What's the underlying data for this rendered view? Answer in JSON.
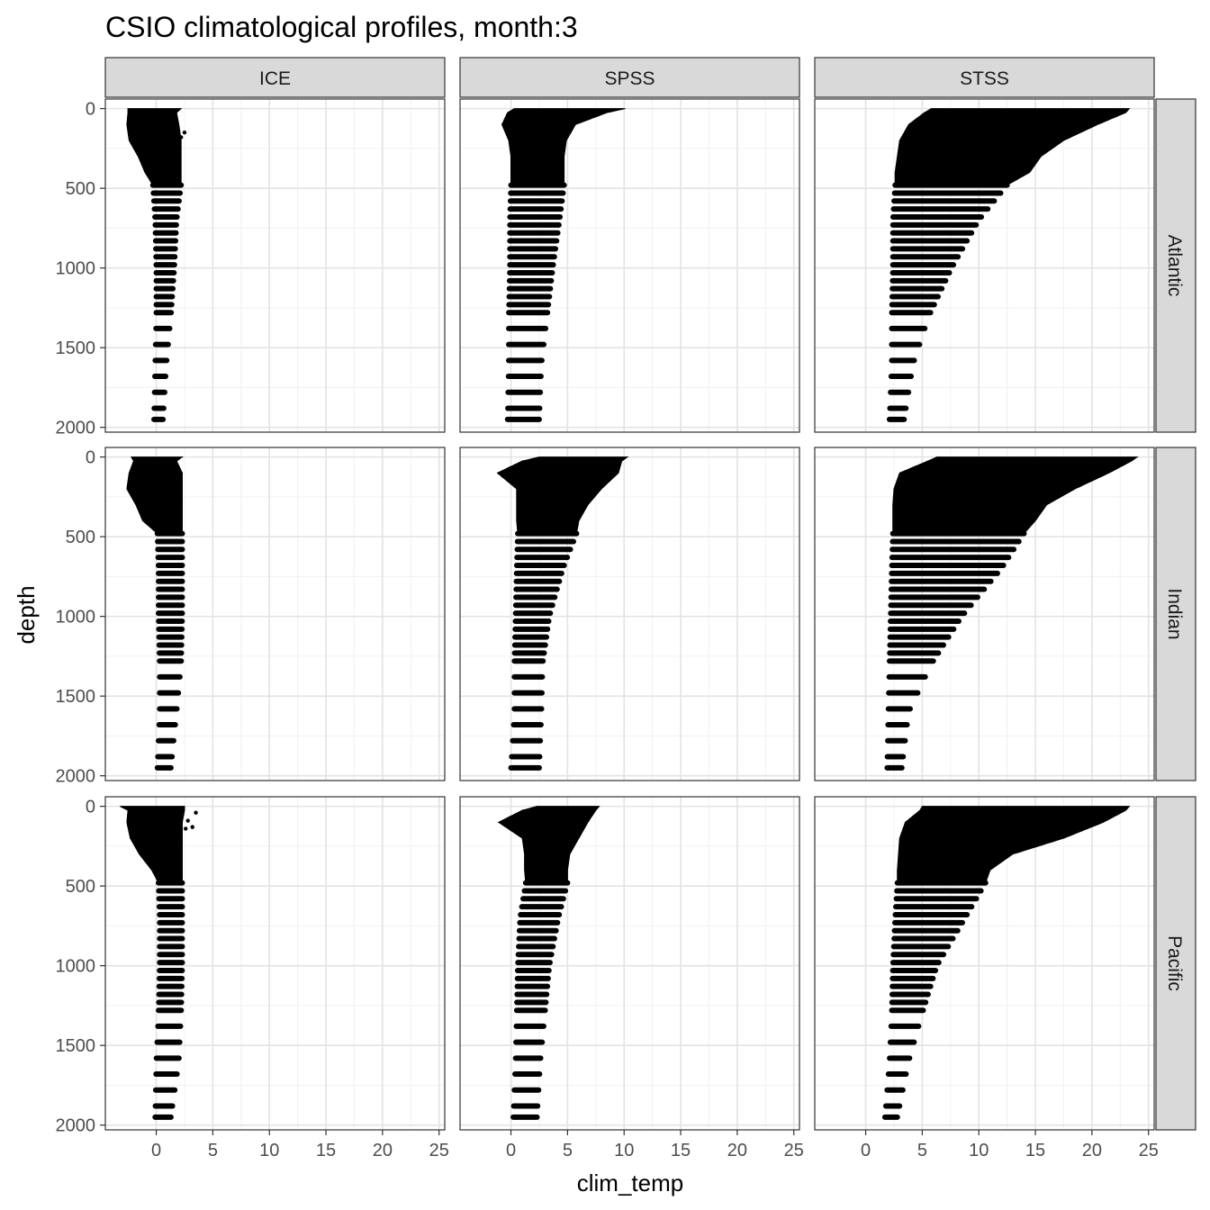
{
  "chart_data": {
    "type": "scatter",
    "title": "CSIO climatological profiles, month:3",
    "xlabel": "clim_temp",
    "ylabel": "depth",
    "xlim": [
      -4.5,
      25.5
    ],
    "ylim": [
      2030,
      -60
    ],
    "y_reversed": true,
    "x_ticks": [
      0,
      5,
      10,
      15,
      20,
      25
    ],
    "y_ticks": [
      0,
      500,
      1000,
      1500,
      2000
    ],
    "grid": true,
    "point_color": "#000000",
    "column_facets": [
      "ICE",
      "SPSS",
      "STSS"
    ],
    "row_facets": [
      "Atlantic",
      "Indian",
      "Pacific"
    ],
    "discrete_depths": [
      480,
      530,
      580,
      630,
      680,
      730,
      780,
      830,
      880,
      930,
      980,
      1030,
      1080,
      1130,
      1180,
      1230,
      1280,
      1380,
      1480,
      1580,
      1680,
      1780,
      1880,
      1950
    ],
    "panels": [
      {
        "column": "ICE",
        "row": "Atlantic",
        "envelope_depth": [
          0,
          25,
          100,
          200,
          300,
          400,
          480,
          700,
          1000,
          1300,
          1600,
          1950
        ],
        "envelope_min": [
          -2.5,
          -2.5,
          -2.6,
          -2.4,
          -1.6,
          -1.0,
          -0.3,
          -0.1,
          0.0,
          0.0,
          -0.1,
          -0.2
        ],
        "envelope_max": [
          2.2,
          1.8,
          2.0,
          2.2,
          2.2,
          2.2,
          2.2,
          1.8,
          1.6,
          1.3,
          0.9,
          0.6
        ],
        "outliers": [
          {
            "x": 2.5,
            "y": 150
          },
          {
            "x": 2.2,
            "y": 180
          },
          {
            "x": 1.8,
            "y": 130
          }
        ]
      },
      {
        "column": "SPSS",
        "row": "Atlantic",
        "envelope_depth": [
          0,
          25,
          100,
          200,
          300,
          400,
          480,
          700,
          1000,
          1300,
          1600,
          1950
        ],
        "envelope_min": [
          0.3,
          -0.3,
          -0.8,
          -0.2,
          0.0,
          0.0,
          0.0,
          -0.1,
          -0.1,
          -0.2,
          -0.2,
          -0.3
        ],
        "envelope_max": [
          10.1,
          8.5,
          5.7,
          4.9,
          4.7,
          4.7,
          4.7,
          4.3,
          3.7,
          3.2,
          2.7,
          2.5
        ],
        "outliers": [
          {
            "x": 0.0,
            "y": 30
          }
        ]
      },
      {
        "column": "STSS",
        "row": "Atlantic",
        "envelope_depth": [
          0,
          25,
          100,
          200,
          300,
          400,
          480,
          700,
          1000,
          1300,
          1600,
          1950
        ],
        "envelope_min": [
          5.8,
          5.2,
          3.8,
          3.0,
          2.8,
          2.6,
          2.6,
          2.4,
          2.4,
          2.3,
          2.3,
          2.1
        ],
        "envelope_max": [
          23.3,
          23.0,
          20.5,
          17.5,
          15.5,
          14.5,
          12.5,
          10.0,
          7.6,
          5.6,
          4.2,
          3.4
        ],
        "outliers": []
      },
      {
        "column": "ICE",
        "row": "Indian",
        "envelope_depth": [
          0,
          25,
          100,
          200,
          300,
          400,
          480,
          700,
          1000,
          1300,
          1600,
          1950
        ],
        "envelope_min": [
          -2.2,
          -2.0,
          -2.4,
          -2.6,
          -1.8,
          -1.2,
          0.1,
          0.2,
          0.2,
          0.3,
          0.3,
          0.1
        ],
        "envelope_max": [
          2.3,
          1.8,
          2.3,
          2.3,
          2.3,
          2.3,
          2.3,
          2.3,
          2.3,
          2.2,
          1.8,
          1.3
        ],
        "outliers": []
      },
      {
        "column": "SPSS",
        "row": "Indian",
        "envelope_depth": [
          0,
          25,
          100,
          200,
          300,
          400,
          480,
          700,
          1000,
          1300,
          1600,
          1950
        ],
        "envelope_min": [
          2.5,
          1.0,
          -1.2,
          0.5,
          0.5,
          0.5,
          0.6,
          0.5,
          0.4,
          0.3,
          0.3,
          0.0
        ],
        "envelope_max": [
          10.3,
          9.8,
          9.5,
          8.0,
          6.8,
          6.0,
          5.8,
          4.6,
          3.4,
          2.8,
          2.7,
          2.5
        ],
        "outliers": []
      },
      {
        "column": "STSS",
        "row": "Indian",
        "envelope_depth": [
          0,
          25,
          100,
          200,
          300,
          400,
          480,
          700,
          1000,
          1300,
          1600,
          1950
        ],
        "envelope_min": [
          6.3,
          5.5,
          3.0,
          2.5,
          2.4,
          2.4,
          2.4,
          2.3,
          2.2,
          2.1,
          2.0,
          1.9
        ],
        "envelope_max": [
          24.0,
          23.5,
          21.5,
          18.5,
          16.0,
          15.0,
          14.0,
          12.0,
          8.5,
          5.8,
          3.8,
          3.2
        ],
        "outliers": []
      },
      {
        "column": "ICE",
        "row": "Pacific",
        "envelope_depth": [
          0,
          25,
          100,
          200,
          300,
          400,
          480,
          700,
          1000,
          1300,
          1600,
          1950
        ],
        "envelope_min": [
          -3.2,
          -2.5,
          -2.6,
          -2.3,
          -1.5,
          -0.4,
          0.2,
          0.3,
          0.3,
          0.2,
          0.0,
          -0.1
        ],
        "envelope_max": [
          2.5,
          2.5,
          2.3,
          2.3,
          2.3,
          2.3,
          2.3,
          2.3,
          2.3,
          2.2,
          2.0,
          1.3
        ],
        "outliers": [
          {
            "x": 3.5,
            "y": 40
          },
          {
            "x": 3.2,
            "y": 130
          },
          {
            "x": 2.8,
            "y": 90
          },
          {
            "x": 2.6,
            "y": 140
          }
        ]
      },
      {
        "column": "SPSS",
        "row": "Pacific",
        "envelope_depth": [
          0,
          25,
          100,
          200,
          300,
          400,
          480,
          700,
          1000,
          1300,
          1600,
          1950
        ],
        "envelope_min": [
          2.3,
          1.0,
          -1.1,
          1.0,
          1.2,
          1.2,
          1.3,
          0.8,
          0.6,
          0.5,
          0.4,
          0.2
        ],
        "envelope_max": [
          7.8,
          7.5,
          6.8,
          6.0,
          5.2,
          5.0,
          5.0,
          4.2,
          3.4,
          3.0,
          2.6,
          2.3
        ],
        "outliers": []
      },
      {
        "column": "STSS",
        "row": "Pacific",
        "envelope_depth": [
          0,
          25,
          100,
          200,
          300,
          400,
          480,
          700,
          1000,
          1300,
          1600,
          1950
        ],
        "envelope_min": [
          5.0,
          4.8,
          3.5,
          3.0,
          2.9,
          2.8,
          2.8,
          2.6,
          2.4,
          2.3,
          2.1,
          1.7
        ],
        "envelope_max": [
          23.3,
          23.0,
          21.0,
          17.5,
          13.0,
          11.0,
          10.6,
          8.8,
          6.3,
          5.0,
          3.8,
          2.8
        ],
        "outliers": []
      }
    ]
  }
}
